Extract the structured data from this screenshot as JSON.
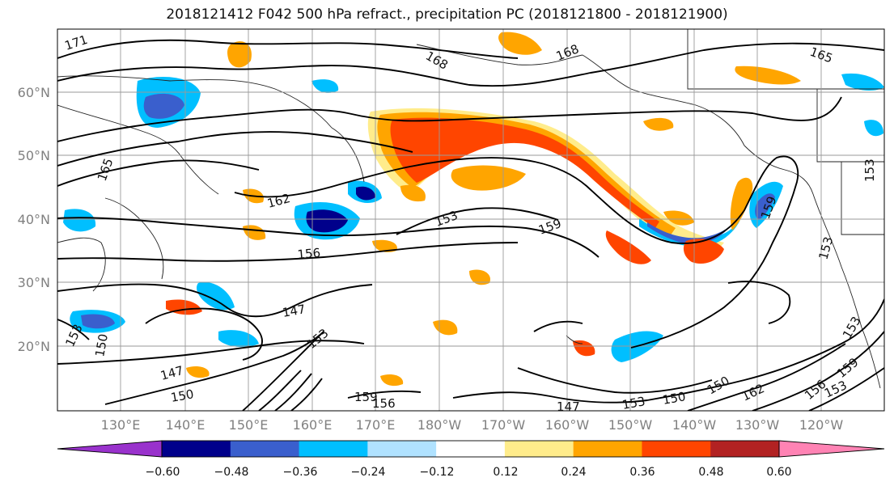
{
  "title": "2018121412 F042 500 hPa refract., precipitation PC (2018121800 - 2018121900)",
  "lat_labels": [
    "60°N",
    "50°N",
    "40°N",
    "30°N",
    "20°N"
  ],
  "lon_labels": [
    "130°E",
    "140°E",
    "150°E",
    "160°E",
    "170°E",
    "180°W",
    "170°W",
    "160°W",
    "150°W",
    "140°W",
    "130°W",
    "120°W"
  ],
  "contour_labels": [
    "171",
    "168",
    "168",
    "165",
    "165",
    "162",
    "153",
    "159",
    "156",
    "159",
    "153",
    "147",
    "153",
    "150",
    "153",
    "147",
    "150",
    "159",
    "156",
    "147",
    "150",
    "153",
    "150",
    "162",
    "156",
    "159",
    "153",
    "153",
    "153"
  ],
  "colorbar": {
    "ticks": [
      "−0.60",
      "−0.48",
      "−0.36",
      "−0.24",
      "−0.12",
      "0.12",
      "0.24",
      "0.36",
      "0.48",
      "0.60"
    ],
    "colors": [
      "#9932cc",
      "#00008b",
      "#3a5fcd",
      "#00bfff",
      "#b0e2ff",
      "#ffffff",
      "#ffec8b",
      "#ffa500",
      "#ff4500",
      "#b22222",
      "#ff83b4"
    ]
  },
  "colors": {
    "strong_neg": "#3a5fcd",
    "darkest_neg": "#00008b",
    "mid_neg": "#00bfff",
    "weak_neg": "#b0e2ff",
    "weak_pos": "#ffec8b",
    "mid_pos": "#ffa500",
    "strong_pos": "#ff4500",
    "strongest_pos": "#b22222"
  }
}
